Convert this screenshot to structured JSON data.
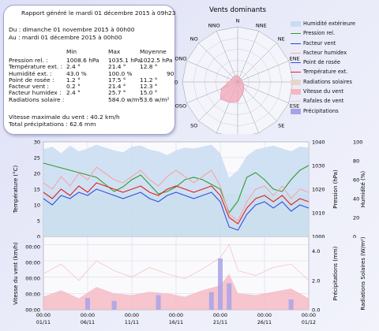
{
  "report": {
    "title": "Rapport généré le mardi 01 décembre 2015 à 09h23",
    "period_from": "Du : dimanche 01 novembre 2015 à 00h00",
    "period_to": "Au : mardi 01 décembre 2015 à 00h00",
    "col_headers": [
      "Min",
      "Max",
      "Moyenne"
    ],
    "rows": [
      {
        "label": "Pression rel. :",
        "min": "1008.6 hPa",
        "max": "1035.1 hPa",
        "avg": "1022.5 hPa"
      },
      {
        "label": "Température ext. :",
        "min": "2.4 °",
        "max": "21.4 °",
        "avg": "12.8 °"
      },
      {
        "label": "Humidité ext. :",
        "min": "43.0 %",
        "max": "100.0 %",
        "avg": "90"
      },
      {
        "label": "Point de rosée :",
        "min": "1.2 °",
        "max": "17.5 °",
        "avg": "11.2 °"
      },
      {
        "label": "Facteur vent :",
        "min": "0.2 °",
        "max": "21.4 °",
        "avg": "12.3 °"
      },
      {
        "label": "Facteur humidex :",
        "min": "2.4 °",
        "max": "25.7 °",
        "avg": "15.0 °"
      },
      {
        "label": "Radiations solaire :",
        "min": "",
        "max": "584.0 w/m²",
        "avg": "53.6 w/m²"
      }
    ],
    "max_wind": "Vitesse maximale du vent : 40.2 km/h",
    "total_precip": "Total précipitations : 62.6 mm"
  },
  "legend": [
    {
      "label": "Humidité extérieure",
      "color": "#c9dcf2",
      "kind": "area"
    },
    {
      "label": "Pression rel.",
      "color": "#2f9a2f",
      "kind": "line"
    },
    {
      "label": "Facteur vent",
      "color": "#2a3fd6",
      "kind": "line"
    },
    {
      "label": "Facteur humidex",
      "color": "#f4a6a6",
      "kind": "line"
    },
    {
      "label": "Point de rosée",
      "color": "#3050e0",
      "kind": "line"
    },
    {
      "label": "Température ext.",
      "color": "#e02020",
      "kind": "line"
    },
    {
      "label": "Radiations solaires",
      "color": "#e7d7c9",
      "kind": "area"
    },
    {
      "label": "Vitesse du vent",
      "color": "#f5b8c0",
      "kind": "area"
    },
    {
      "label": "Rafales de vent",
      "color": "#f7c9c9",
      "kind": "line"
    },
    {
      "label": "Précipitations",
      "color": "#a9a2e8",
      "kind": "area"
    }
  ],
  "chart_data": [
    {
      "type": "radar",
      "title": "Vents dominants",
      "directions": [
        "N",
        "NNE",
        "NE",
        "ENE",
        "E",
        "ESE",
        "SE",
        "SSE",
        "S",
        "SSO",
        "SO",
        "OSO",
        "O",
        "ONO",
        "NO",
        "NNO"
      ],
      "frequency_pct": [
        3,
        2,
        2,
        2,
        2,
        3,
        4,
        6,
        9,
        10,
        11,
        8,
        4,
        3,
        3,
        3
      ],
      "rmax": 25,
      "fill_color": "#f3a4b8"
    },
    {
      "type": "line",
      "x_labels": [
        "00:00\n01/11",
        "00:00\n06/11",
        "00:00\n11/11",
        "00:00\n16/11",
        "00:00\n21/11",
        "00:00\n26/11",
        "00:00\n01/12"
      ],
      "x_days": [
        0,
        5,
        10,
        15,
        20,
        25,
        30
      ],
      "ylabel_left": "Température (°C)",
      "ylabel_right1": "Pression (hPa)",
      "ylabel_right2": "Humidité (%)",
      "ylim_left": [
        0,
        30
      ],
      "ylim_right1": [
        1000,
        1040
      ],
      "ylim_right2": [
        0,
        100
      ],
      "yticks_left": [
        "0",
        "5",
        "10",
        "15",
        "20",
        "25",
        "30"
      ],
      "yticks_right1": [
        "1000",
        "1010",
        "1020",
        "1030",
        "1040"
      ],
      "yticks_right2": [
        "0",
        "20",
        "40",
        "60",
        "80",
        "100"
      ],
      "grid": true,
      "series": [
        {
          "name": "Humidité extérieure",
          "axis": "right2",
          "color": "#c9dcf2",
          "x": [
            0,
            1,
            2,
            3,
            4,
            5,
            6,
            7,
            8,
            9,
            10,
            11,
            12,
            13,
            14,
            15,
            16,
            17,
            18,
            19,
            20,
            21,
            22,
            23,
            24,
            25,
            26,
            27,
            28,
            29,
            30
          ],
          "y": [
            92,
            95,
            88,
            96,
            90,
            93,
            97,
            94,
            91,
            89,
            95,
            96,
            92,
            90,
            86,
            91,
            94,
            93,
            95,
            97,
            88,
            62,
            70,
            85,
            92,
            94,
            96,
            93,
            90,
            95,
            94
          ]
        },
        {
          "name": "Pression rel.",
          "axis": "right1",
          "color": "#2f9a2f",
          "x": [
            0,
            1,
            2,
            3,
            4,
            5,
            6,
            7,
            8,
            9,
            10,
            11,
            12,
            13,
            14,
            15,
            16,
            17,
            18,
            19,
            20,
            21,
            22,
            23,
            24,
            25,
            26,
            27,
            28,
            29,
            30
          ],
          "y": [
            1031,
            1030,
            1029,
            1028,
            1027,
            1026,
            1025,
            1022,
            1019,
            1021,
            1024,
            1026,
            1022,
            1018,
            1019,
            1021,
            1024,
            1025,
            1024,
            1022,
            1020,
            1010,
            1015,
            1025,
            1027,
            1024,
            1020,
            1019,
            1024,
            1028,
            1030
          ]
        },
        {
          "name": "Température ext.",
          "axis": "left",
          "color": "#e02020",
          "x": [
            0,
            1,
            2,
            3,
            4,
            5,
            6,
            7,
            8,
            9,
            10,
            11,
            12,
            13,
            14,
            15,
            16,
            17,
            18,
            19,
            20,
            21,
            22,
            23,
            24,
            25,
            26,
            27,
            28,
            29,
            30
          ],
          "y": [
            14,
            12,
            15,
            13,
            16,
            14,
            17,
            16,
            15,
            14,
            15,
            16,
            14,
            13,
            15,
            16,
            15,
            14,
            15,
            16,
            13,
            6,
            4,
            9,
            12,
            13,
            11,
            13,
            10,
            12,
            11
          ]
        },
        {
          "name": "Point de rosée",
          "axis": "left",
          "color": "#3050e0",
          "x": [
            0,
            1,
            2,
            3,
            4,
            5,
            6,
            7,
            8,
            9,
            10,
            11,
            12,
            13,
            14,
            15,
            16,
            17,
            18,
            19,
            20,
            21,
            22,
            23,
            24,
            25,
            26,
            27,
            28,
            29,
            30
          ],
          "y": [
            12,
            10,
            13,
            12,
            14,
            13,
            15,
            14,
            13,
            12,
            13,
            14,
            12,
            11,
            13,
            14,
            13,
            12,
            13,
            14,
            11,
            3,
            2,
            7,
            10,
            11,
            9,
            11,
            8,
            10,
            9
          ]
        },
        {
          "name": "Facteur humidex",
          "axis": "left",
          "color": "#f4a6a6",
          "x": [
            0,
            1,
            2,
            3,
            4,
            5,
            6,
            7,
            8,
            9,
            10,
            11,
            12,
            13,
            14,
            15,
            16,
            17,
            18,
            19,
            20,
            21,
            22,
            23,
            24,
            25,
            26,
            27,
            28,
            29,
            30
          ],
          "y": [
            17,
            15,
            19,
            16,
            20,
            18,
            22,
            20,
            18,
            17,
            19,
            21,
            18,
            16,
            19,
            21,
            19,
            17,
            19,
            21,
            16,
            7,
            5,
            11,
            15,
            16,
            13,
            16,
            12,
            15,
            14
          ]
        }
      ]
    },
    {
      "type": "area",
      "x_labels": [
        "00:00\n01/11",
        "00:00\n06/11",
        "00:00\n11/11",
        "00:00\n16/11",
        "00:00\n21/11",
        "00:00\n26/11",
        "00:00\n01/12"
      ],
      "ylabel_left": "Vitesse du vent (km/h)",
      "ylabel_right1": "Précipitations (mm)",
      "ylabel_right2": "Radiations Solaires (W/m²)",
      "yticks_right1": [
        "0.0",
        "2.0",
        "4.0"
      ],
      "ylim_right1": [
        0,
        5
      ],
      "grid": true,
      "series": [
        {
          "name": "Rafales de vent",
          "axis": "left",
          "color": "#f7c9c9",
          "x": [
            0,
            2,
            4,
            6,
            8,
            10,
            12,
            14,
            16,
            18,
            20,
            21,
            22,
            24,
            26,
            28,
            30
          ],
          "y": [
            22,
            28,
            18,
            30,
            24,
            20,
            26,
            22,
            19,
            25,
            32,
            40,
            24,
            21,
            26,
            28,
            18
          ]
        },
        {
          "name": "Vitesse du vent",
          "axis": "left",
          "color": "#f5b8c0",
          "x": [
            0,
            2,
            4,
            6,
            8,
            10,
            12,
            14,
            16,
            18,
            20,
            21,
            22,
            24,
            26,
            28,
            30
          ],
          "y": [
            8,
            12,
            7,
            14,
            10,
            9,
            11,
            10,
            8,
            12,
            15,
            22,
            10,
            9,
            11,
            13,
            7
          ]
        },
        {
          "name": "Précipitations",
          "axis": "right1",
          "color": "#a9a2e8",
          "x": [
            5,
            8,
            13,
            19,
            20,
            21,
            28
          ],
          "y": [
            0.8,
            0.6,
            1.0,
            1.2,
            3.5,
            1.8,
            0.7
          ]
        }
      ]
    }
  ]
}
